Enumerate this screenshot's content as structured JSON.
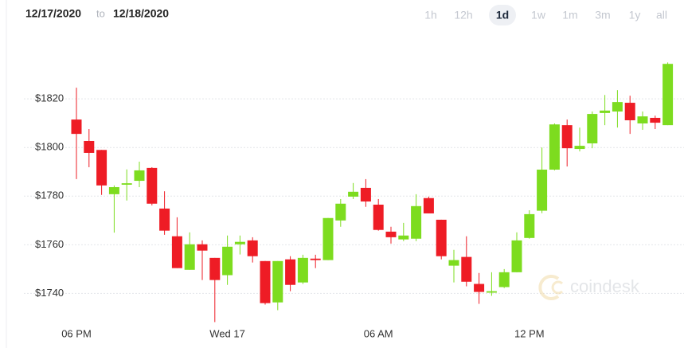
{
  "header": {
    "from": "12/17/2020",
    "to_word": "to",
    "to": "12/18/2020",
    "ranges": [
      "1h",
      "12h",
      "1d",
      "1w",
      "1m",
      "3m",
      "1y",
      "all"
    ],
    "active_range_index": 2
  },
  "watermark": "coindesk",
  "chart_data": {
    "type": "candlestick",
    "categories": [
      "06 PM",
      null,
      null,
      null,
      null,
      null,
      null,
      null,
      null,
      null,
      null,
      null,
      "Wed 17",
      null,
      null,
      null,
      null,
      null,
      null,
      null,
      null,
      null,
      null,
      null,
      "06 AM",
      null,
      null,
      null,
      null,
      null,
      null,
      null,
      null,
      null,
      null,
      null,
      "12 PM",
      null,
      null,
      null,
      null,
      null,
      null,
      null,
      null,
      null,
      null,
      null
    ],
    "open": [
      1811.5,
      1802.7,
      1799,
      1780.8,
      1784.7,
      1786.3,
      1791.6,
      1774.9,
      1763.5,
      1749.7,
      1760.2,
      1754.6,
      1747.5,
      1760.2,
      1761.8,
      1753.3,
      1736.3,
      1754,
      1744.5,
      1754.3,
      1753.7,
      1770,
      1779.8,
      1783.4,
      1776.5,
      1765.4,
      1762.2,
      1762.5,
      1779.2,
      1770.3,
      1751.4,
      1755,
      1743.9,
      1740.3,
      1742.6,
      1748.7,
      1762.8,
      1774,
      1790.9,
      1809.2,
      1799.4,
      1801.7,
      1814.2,
      1814.8,
      1818.4,
      1809.9,
      1812.2,
      1809.2
    ],
    "high": [
      1824.6,
      1807.6,
      1799,
      1784.4,
      1791,
      1794.2,
      1791.9,
      1782,
      1771.3,
      1765.1,
      1761.8,
      1754.6,
      1763.8,
      1763.8,
      1763.1,
      1753.3,
      1753.3,
      1755.3,
      1755.9,
      1755.9,
      1771,
      1778.8,
      1785.4,
      1787,
      1778.8,
      1767.4,
      1769,
      1780.8,
      1779.8,
      1770.3,
      1757.9,
      1763.5,
      1748.4,
      1748.7,
      1750,
      1765.1,
      1774.2,
      1800,
      1809.9,
      1811.5,
      1808.2,
      1814.8,
      1821.6,
      1823.6,
      1821.3,
      1814.8,
      1813.1,
      1835
    ],
    "low": [
      1787,
      1791.9,
      1780.5,
      1765,
      1778.2,
      1783.7,
      1776.2,
      1764.1,
      1750.4,
      1749.7,
      1745.5,
      1728.2,
      1743.5,
      1756,
      1752.7,
      1735.4,
      1733.1,
      1740.9,
      1743.9,
      1750.4,
      1753.7,
      1767.4,
      1778.8,
      1775.6,
      1765.8,
      1760.5,
      1761.5,
      1761.5,
      1772.9,
      1754,
      1744.5,
      1742.9,
      1735.7,
      1739,
      1742.2,
      1748.7,
      1762.5,
      1773,
      1790.6,
      1792.2,
      1798.4,
      1799.7,
      1809.2,
      1808.2,
      1805.6,
      1807.3,
      1807.6,
      1809.2
    ],
    "close": [
      1805.6,
      1797.8,
      1784.4,
      1783.7,
      1785.3,
      1790.6,
      1776.9,
      1765.8,
      1750.4,
      1760.2,
      1757.6,
      1745.5,
      1759.2,
      1761.2,
      1755.3,
      1736,
      1753.3,
      1743.5,
      1754.6,
      1753.7,
      1771,
      1776.9,
      1781.8,
      1777.8,
      1766.1,
      1763.1,
      1763.8,
      1775.9,
      1772.9,
      1755.3,
      1753.7,
      1744.8,
      1740.6,
      1740.9,
      1748.7,
      1761.8,
      1772.6,
      1790.9,
      1809.5,
      1799.7,
      1800.7,
      1813.8,
      1815.2,
      1818.7,
      1811.2,
      1812.8,
      1810.2,
      1834.4
    ],
    "up_color": "#7ddc1f",
    "down_color": "#ee1c25",
    "ylim": [
      1729,
      1842
    ],
    "yticks": [
      {
        "value": 1740,
        "label": "$1740"
      },
      {
        "value": 1760,
        "label": "$1760"
      },
      {
        "value": 1780,
        "label": "$1780"
      },
      {
        "value": 1800,
        "label": "$1800"
      },
      {
        "value": 1820,
        "label": "$1820"
      }
    ],
    "grid": true
  }
}
